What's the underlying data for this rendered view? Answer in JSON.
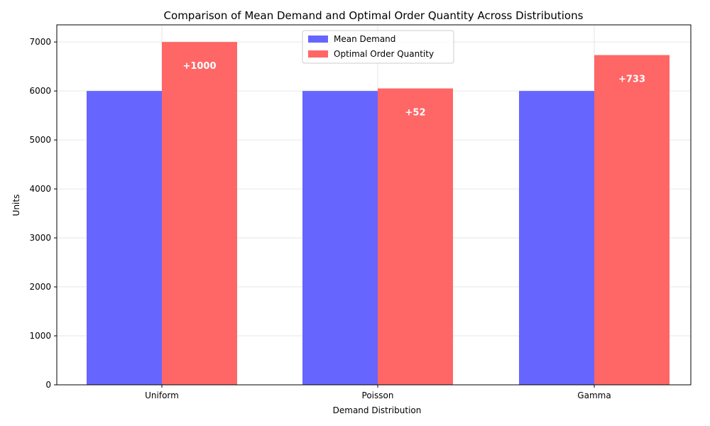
{
  "chart_data": {
    "type": "bar",
    "title": "Comparison of Mean Demand and Optimal Order Quantity Across Distributions",
    "xlabel": "Demand Distribution",
    "ylabel": "Units",
    "categories": [
      "Uniform",
      "Poisson",
      "Gamma"
    ],
    "series": [
      {
        "name": "Mean Demand",
        "values": [
          6000,
          6000,
          6000
        ],
        "color": "#6666ff"
      },
      {
        "name": "Optimal Order Quantity",
        "values": [
          7000,
          6052,
          6733
        ],
        "color": "#ff6666"
      }
    ],
    "bar_labels": [
      "+1000",
      "+52",
      "+733"
    ],
    "ylim": [
      0,
      7350
    ],
    "yticks": [
      0,
      1000,
      2000,
      3000,
      4000,
      5000,
      6000,
      7000
    ],
    "grid": true,
    "legend_position": "upper center"
  }
}
